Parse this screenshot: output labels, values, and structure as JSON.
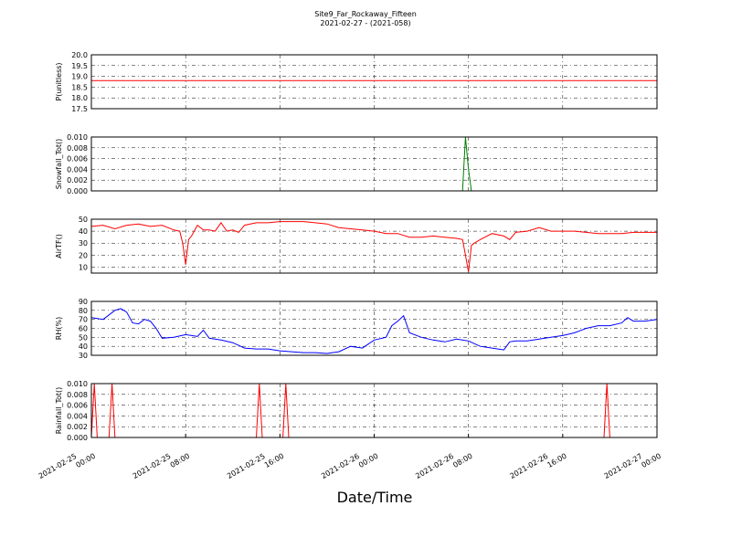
{
  "chart_data": [
    {
      "type": "line",
      "title": "Site9_Far_Rockaway_Fifteen",
      "subtitle": "2021-02-27 - (2021-058)",
      "ylabel": "P(unitless)",
      "color": "#ff0000",
      "grid": true,
      "ylim": [
        17.5,
        20.0
      ],
      "yticks": [
        17.5,
        {
          "value": 18,
          "label": "18.0"
        },
        18.5,
        {
          "value": 19,
          "label": "19.0"
        },
        19.5,
        {
          "value": 20,
          "label": "20.0"
        }
      ],
      "x": [
        "2021-02-25 00:00",
        "2021-02-27 00:00"
      ],
      "values": [
        18.8,
        18.8
      ]
    },
    {
      "type": "line",
      "ylabel": "Snowfall_Tot()",
      "color": "#007f00",
      "grid": true,
      "ylim": [
        0,
        0.01
      ],
      "yticks": [
        {
          "value": 0,
          "label": "0.000"
        },
        {
          "value": 0.002,
          "label": "0.002"
        },
        {
          "value": 0.004,
          "label": "0.004"
        },
        {
          "value": 0.006,
          "label": "0.006"
        },
        {
          "value": 0.008,
          "label": "0.008"
        },
        {
          "value": 0.01,
          "label": "0.010"
        }
      ],
      "x": [
        "2021-02-25 00:00",
        "2021-02-26 07:30",
        "2021-02-26 07:45",
        "2021-02-26 08:00",
        "2021-02-26 08:15",
        "2021-02-27 00:00"
      ],
      "values": [
        0,
        0,
        0.01,
        0.004,
        0,
        0
      ]
    },
    {
      "type": "line",
      "ylabel": "AirTF()",
      "color": "#ff0000",
      "grid": true,
      "ylim": [
        5,
        50
      ],
      "yticks": [
        10,
        20,
        30,
        40,
        50
      ],
      "x": [
        "2021-02-25 00:00",
        "2021-02-25 01:00",
        "2021-02-25 02:00",
        "2021-02-25 03:00",
        "2021-02-25 04:00",
        "2021-02-25 05:00",
        "2021-02-25 06:00",
        "2021-02-25 07:00",
        "2021-02-25 07:30",
        "2021-02-25 07:45",
        "2021-02-25 08:00",
        "2021-02-25 08:15",
        "2021-02-25 08:30",
        "2021-02-25 09:00",
        "2021-02-25 09:30",
        "2021-02-25 10:00",
        "2021-02-25 10:30",
        "2021-02-25 11:00",
        "2021-02-25 11:30",
        "2021-02-25 12:00",
        "2021-02-25 12:30",
        "2021-02-25 13:00",
        "2021-02-25 14:00",
        "2021-02-25 15:00",
        "2021-02-25 16:00",
        "2021-02-25 17:00",
        "2021-02-25 18:00",
        "2021-02-25 19:00",
        "2021-02-25 20:00",
        "2021-02-25 21:00",
        "2021-02-25 22:00",
        "2021-02-25 23:00",
        "2021-02-26 00:00",
        "2021-02-26 01:00",
        "2021-02-26 02:00",
        "2021-02-26 03:00",
        "2021-02-26 04:00",
        "2021-02-26 05:00",
        "2021-02-26 06:00",
        "2021-02-26 07:00",
        "2021-02-26 07:30",
        "2021-02-26 07:45",
        "2021-02-26 08:00",
        "2021-02-26 08:15",
        "2021-02-26 08:30",
        "2021-02-26 09:00",
        "2021-02-26 10:00",
        "2021-02-26 11:00",
        "2021-02-26 11:30",
        "2021-02-26 12:00",
        "2021-02-26 13:00",
        "2021-02-26 14:00",
        "2021-02-26 15:00",
        "2021-02-26 16:00",
        "2021-02-26 17:00",
        "2021-02-26 18:00",
        "2021-02-26 19:00",
        "2021-02-26 20:00",
        "2021-02-26 21:00",
        "2021-02-26 22:00",
        "2021-02-26 23:00",
        "2021-02-27 00:00"
      ],
      "values": [
        44,
        45,
        42,
        45,
        46,
        44,
        45,
        41,
        40,
        30,
        12,
        33,
        36,
        45,
        41,
        41,
        40,
        47,
        40,
        41,
        39,
        45,
        47,
        47,
        48,
        48,
        48,
        47,
        46,
        43,
        42,
        41,
        40,
        38,
        38,
        35,
        35,
        36,
        35,
        34,
        33,
        20,
        6,
        28,
        30,
        33,
        38,
        36,
        33,
        39,
        40,
        43,
        40,
        40,
        40,
        39,
        38,
        38,
        38,
        39,
        39,
        39
      ]
    },
    {
      "type": "line",
      "ylabel": "RH(%)",
      "color": "#0000ff",
      "grid": true,
      "ylim": [
        30,
        90
      ],
      "yticks": [
        30,
        40,
        50,
        60,
        70,
        80,
        90
      ],
      "x": [
        "2021-02-25 00:00",
        "2021-02-25 01:00",
        "2021-02-25 02:00",
        "2021-02-25 02:30",
        "2021-02-25 03:00",
        "2021-02-25 03:30",
        "2021-02-25 04:00",
        "2021-02-25 04:30",
        "2021-02-25 05:00",
        "2021-02-25 05:30",
        "2021-02-25 06:00",
        "2021-02-25 07:00",
        "2021-02-25 08:00",
        "2021-02-25 09:00",
        "2021-02-25 09:30",
        "2021-02-25 10:00",
        "2021-02-25 11:00",
        "2021-02-25 12:00",
        "2021-02-25 13:00",
        "2021-02-25 14:00",
        "2021-02-25 15:00",
        "2021-02-25 16:00",
        "2021-02-25 17:00",
        "2021-02-25 18:00",
        "2021-02-25 19:00",
        "2021-02-25 20:00",
        "2021-02-25 21:00",
        "2021-02-25 22:00",
        "2021-02-25 23:00",
        "2021-02-26 00:00",
        "2021-02-26 01:00",
        "2021-02-26 01:30",
        "2021-02-26 02:00",
        "2021-02-26 02:30",
        "2021-02-26 03:00",
        "2021-02-26 04:00",
        "2021-02-26 05:00",
        "2021-02-26 06:00",
        "2021-02-26 07:00",
        "2021-02-26 08:00",
        "2021-02-26 09:00",
        "2021-02-26 10:00",
        "2021-02-26 11:00",
        "2021-02-26 11:30",
        "2021-02-26 12:00",
        "2021-02-26 13:00",
        "2021-02-26 14:00",
        "2021-02-26 15:00",
        "2021-02-26 16:00",
        "2021-02-26 17:00",
        "2021-02-26 18:00",
        "2021-02-26 19:00",
        "2021-02-26 20:00",
        "2021-02-26 21:00",
        "2021-02-26 21:30",
        "2021-02-26 22:00",
        "2021-02-26 23:00",
        "2021-02-27 00:00"
      ],
      "values": [
        72,
        70,
        80,
        82,
        78,
        66,
        65,
        70,
        68,
        60,
        49,
        50,
        53,
        51,
        58,
        49,
        47,
        44,
        38,
        37,
        37,
        35,
        34,
        33,
        33,
        32,
        34,
        40,
        38,
        47,
        50,
        63,
        68,
        74,
        55,
        50,
        47,
        45,
        48,
        46,
        40,
        38,
        36,
        45,
        46,
        46,
        48,
        50,
        52,
        55,
        60,
        63,
        63,
        66,
        72,
        68,
        68,
        70
      ]
    },
    {
      "type": "line",
      "ylabel": "Rainfall_Tot()",
      "xlabel": "Date/Time",
      "color": "#ff0000",
      "grid": true,
      "ylim": [
        0,
        0.01
      ],
      "yticks": [
        {
          "value": 0,
          "label": "0.000"
        },
        {
          "value": 0.002,
          "label": "0.002"
        },
        {
          "value": 0.004,
          "label": "0.004"
        },
        {
          "value": 0.006,
          "label": "0.006"
        },
        {
          "value": 0.008,
          "label": "0.008"
        },
        {
          "value": 0.01,
          "label": "0.010"
        }
      ],
      "xlim": [
        "2021-02-25 00:00",
        "2021-02-27 00:00"
      ],
      "xticks": [
        "2021-02-25 00:00",
        "2021-02-25 08:00",
        "2021-02-25 16:00",
        "2021-02-26 00:00",
        "2021-02-26 08:00",
        "2021-02-26 16:00",
        "2021-02-27 00:00"
      ],
      "x": [
        "2021-02-25 00:00",
        "2021-02-25 00:15",
        "2021-02-25 00:30",
        "2021-02-25 01:30",
        "2021-02-25 01:45",
        "2021-02-25 02:00",
        "2021-02-25 14:00",
        "2021-02-25 14:15",
        "2021-02-25 14:30",
        "2021-02-25 16:15",
        "2021-02-25 16:30",
        "2021-02-25 16:45",
        "2021-02-26 19:30",
        "2021-02-26 19:45",
        "2021-02-26 20:00",
        "2021-02-27 00:00"
      ],
      "values": [
        0,
        0.01,
        0,
        0,
        0.01,
        0,
        0,
        0.01,
        0,
        0,
        0.01,
        0,
        0,
        0.01,
        0,
        0
      ]
    }
  ]
}
